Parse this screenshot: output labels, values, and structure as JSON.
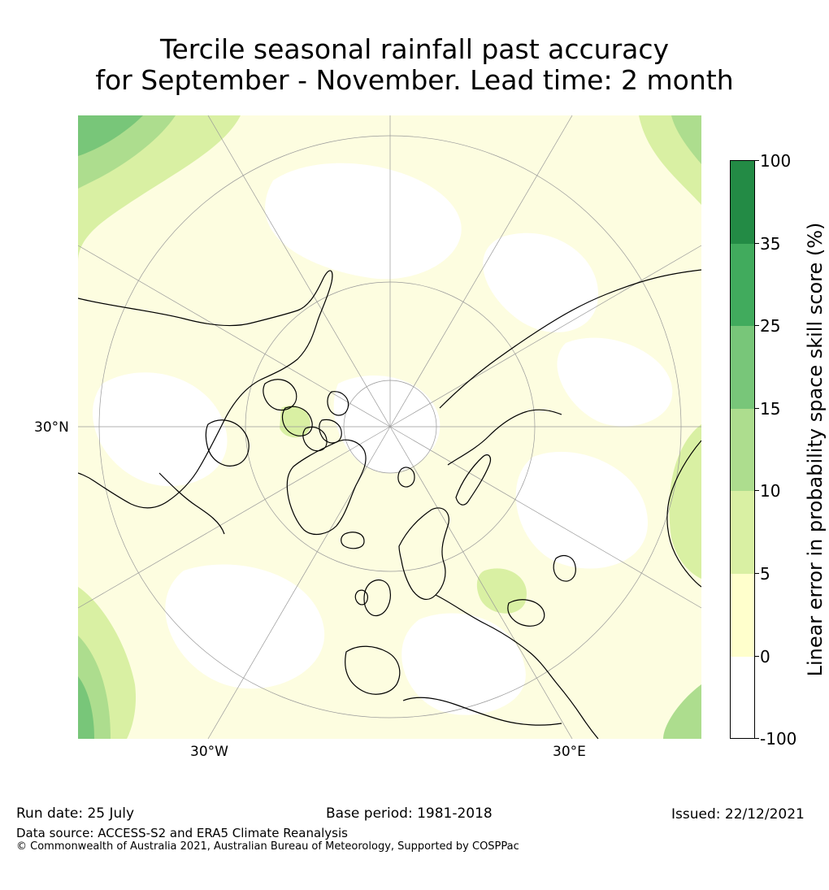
{
  "title": {
    "line1": "Tercile seasonal rainfall past accuracy",
    "line2": "for September - November. Lead time: 2 month"
  },
  "map": {
    "projection": "north-polar-stereographic",
    "labels": {
      "lat": "30°N",
      "lon_west": "30°W",
      "lon_east": "30°E"
    },
    "colors": {
      "land_outline": "#000000",
      "graticule": "#999999"
    }
  },
  "colorbar": {
    "label": "Linear error in probability space skill score (%)",
    "ticks": [
      "100",
      "35",
      "25",
      "15",
      "10",
      "5",
      "0",
      "-100"
    ],
    "colors": [
      "#238b45",
      "#41ab5d",
      "#78c679",
      "#addd8e",
      "#d9f0a3",
      "#ffffcc",
      "#ffffff"
    ]
  },
  "footer": {
    "run_date": "Run date: 25 July",
    "base_period": "Base period: 1981-2018",
    "issued": "Issued: 22/12/2021",
    "data_source": "Data source: ACCESS-S2 and ERA5 Climate Reanalysis",
    "copyright": "© Commonwealth of Australia 2021, Australian Bureau of Meteorology, Supported by COSPPac"
  }
}
